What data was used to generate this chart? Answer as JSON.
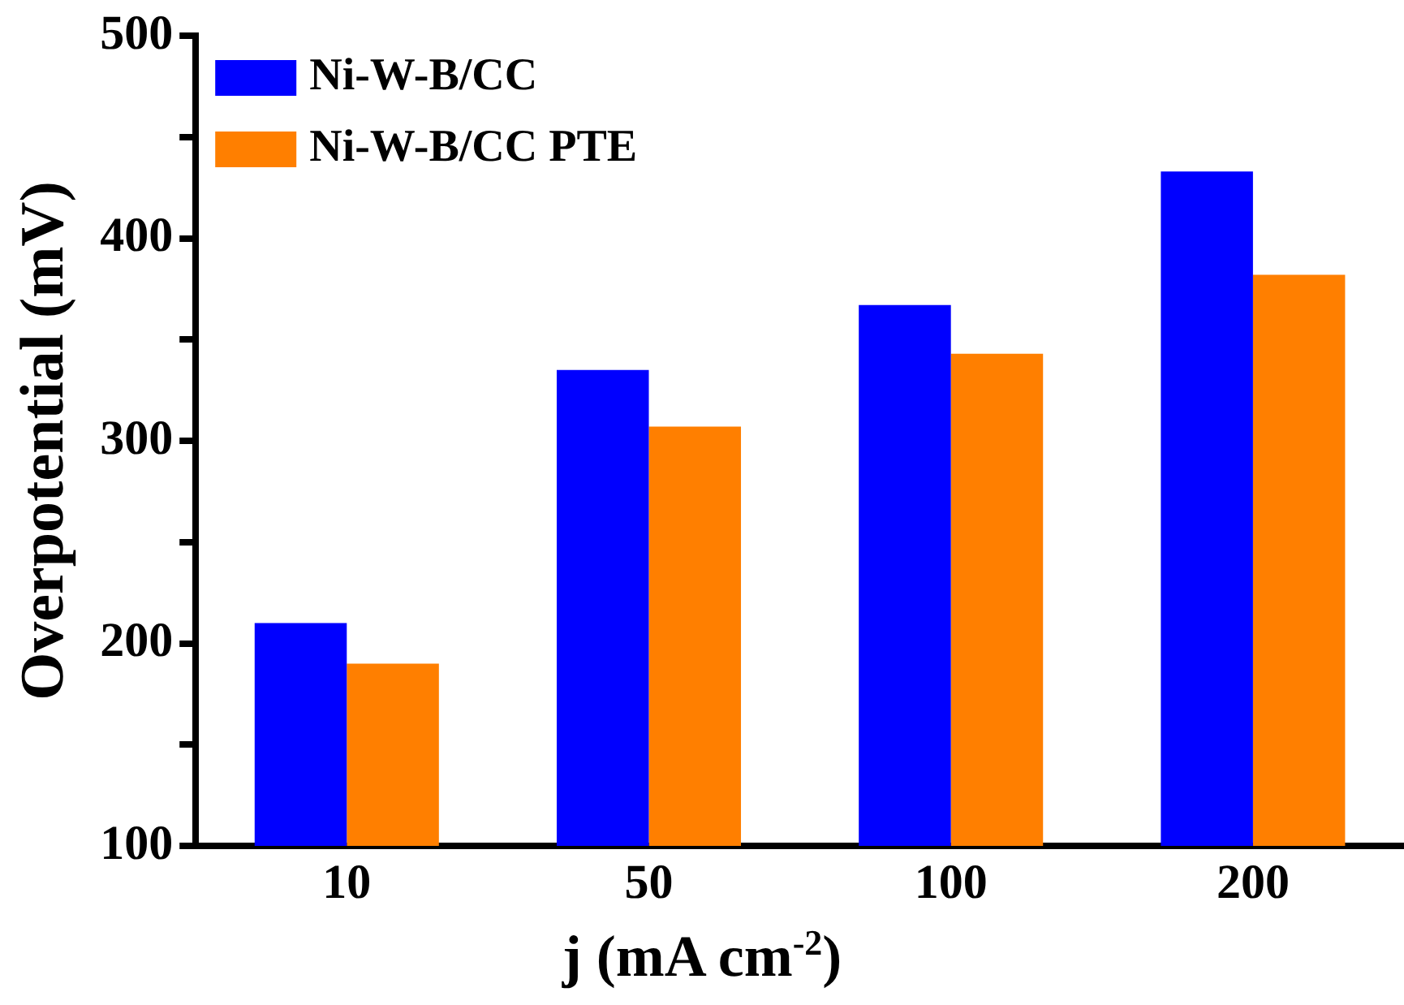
{
  "chart_data": {
    "type": "bar",
    "xlabel": "j (mA cm$^{-2}$)",
    "ylabel": "Overpotential (mV)",
    "categories": [
      "10",
      "50",
      "100",
      "200"
    ],
    "series": [
      {
        "name": "Ni-W-B/CC",
        "color": "#0000ff",
        "values": [
          210,
          335,
          367,
          433
        ]
      },
      {
        "name": "Ni-W-B/CC PTE",
        "color": "#ff7f00",
        "values": [
          190,
          307,
          343,
          382
        ]
      }
    ],
    "ylim": [
      100,
      500
    ],
    "yticks": [
      100,
      {
        "value": 150,
        "label": null
      },
      200,
      {
        "value": 250,
        "label": null
      },
      300,
      {
        "value": 350,
        "label": null
      },
      400,
      {
        "value": 450,
        "label": null
      },
      500
    ],
    "grid": false,
    "legend": "top left"
  }
}
